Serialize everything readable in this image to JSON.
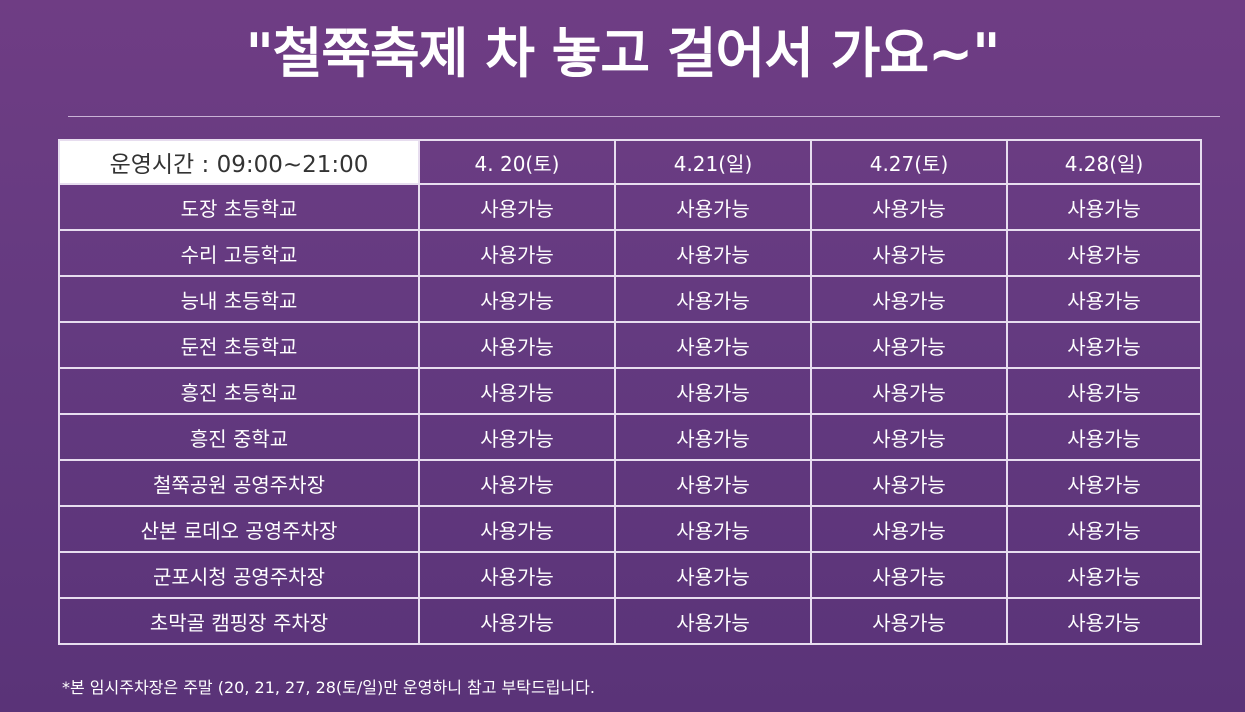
{
  "title": "\"철쭉축제 차 놓고 걸어서 가요~\"",
  "table": {
    "hours_label": "운영시간 : 09:00~21:00",
    "dates": [
      "4. 20(토)",
      "4.21(일)",
      "4.27(토)",
      "4.28(일)"
    ],
    "rows": [
      {
        "location": "도장 초등학교",
        "status": [
          "사용가능",
          "사용가능",
          "사용가능",
          "사용가능"
        ]
      },
      {
        "location": "수리 고등학교",
        "status": [
          "사용가능",
          "사용가능",
          "사용가능",
          "사용가능"
        ]
      },
      {
        "location": "능내 초등학교",
        "status": [
          "사용가능",
          "사용가능",
          "사용가능",
          "사용가능"
        ]
      },
      {
        "location": "둔전 초등학교",
        "status": [
          "사용가능",
          "사용가능",
          "사용가능",
          "사용가능"
        ]
      },
      {
        "location": "흥진 초등학교",
        "status": [
          "사용가능",
          "사용가능",
          "사용가능",
          "사용가능"
        ]
      },
      {
        "location": "흥진 중학교",
        "status": [
          "사용가능",
          "사용가능",
          "사용가능",
          "사용가능"
        ]
      },
      {
        "location": "철쭉공원 공영주차장",
        "status": [
          "사용가능",
          "사용가능",
          "사용가능",
          "사용가능"
        ]
      },
      {
        "location": "산본 로데오 공영주차장",
        "status": [
          "사용가능",
          "사용가능",
          "사용가능",
          "사용가능"
        ]
      },
      {
        "location": "군포시청 공영주차장",
        "status": [
          "사용가능",
          "사용가능",
          "사용가능",
          "사용가능"
        ]
      },
      {
        "location": "초막골 캠핑장 주차장",
        "status": [
          "사용가능",
          "사용가능",
          "사용가능",
          "사용가능"
        ]
      }
    ]
  },
  "footnote": "*본 임시주차장은 주말 (20, 21, 27, 28(토/일)만 운영하니 참고 부탁드립니다.",
  "colors": {
    "background": "#673a82",
    "border": "#e7ddef",
    "header_cell_bg": "#ffffff",
    "header_cell_text": "#333333"
  }
}
